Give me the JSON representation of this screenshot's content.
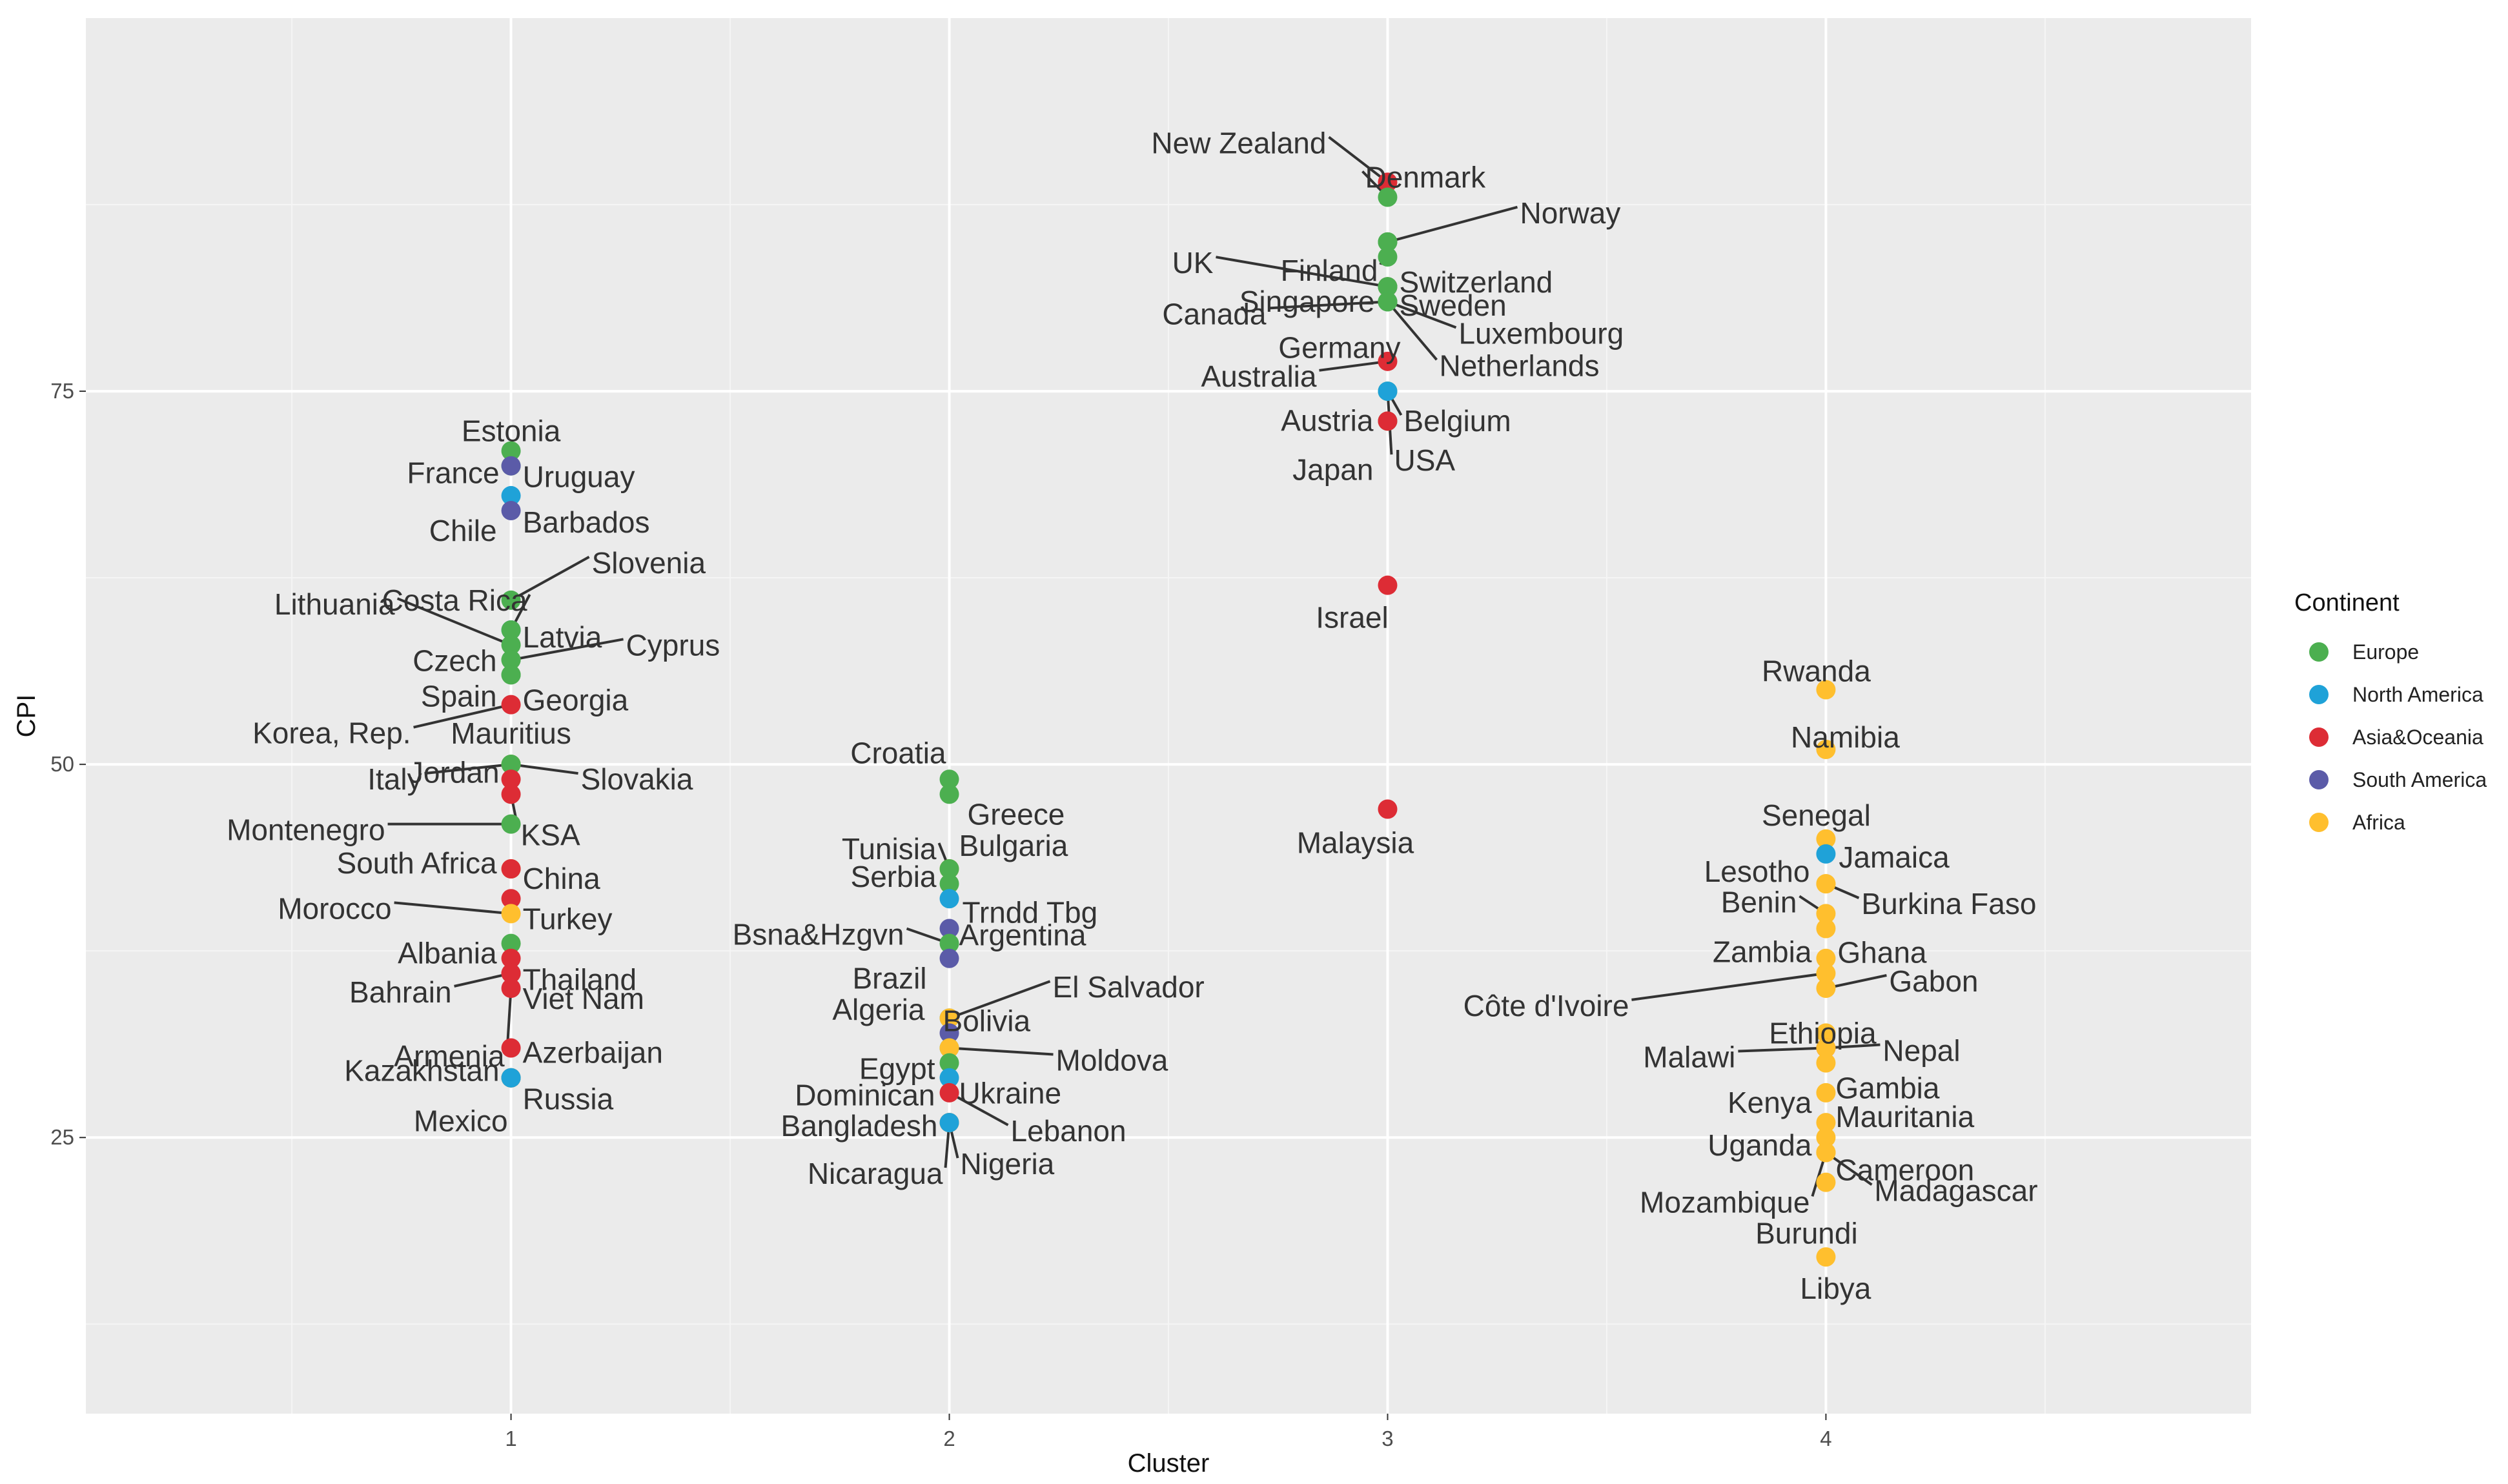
{
  "chart_data": {
    "type": "scatter",
    "title": "",
    "xlabel": "Cluster",
    "ylabel": "CPI",
    "xlim": [
      0.03,
      4.97
    ],
    "ylim": [
      6.5,
      100
    ],
    "x_ticks": [
      "1",
      "2",
      "3",
      "4"
    ],
    "y_ticks": [
      "25",
      "50",
      "75"
    ],
    "grid": true,
    "legend": {
      "title": "Continent",
      "position": "right",
      "entries": [
        "Europe",
        "North America",
        "Asia&Oceania",
        "South America",
        "Africa"
      ]
    },
    "colors": {
      "Europe": "#4CAF50",
      "North America": "#1FA2D8",
      "Asia&Oceania": "#DD2C35",
      "South America": "#5B5BA8",
      "Africa": "#FFBF2E"
    },
    "points": [
      {
        "label": "Estonia",
        "cluster": 1,
        "cpi": 71,
        "continent": "Europe"
      },
      {
        "label": "France",
        "cluster": 1,
        "cpi": 70,
        "continent": "Europe"
      },
      {
        "label": "Uruguay",
        "cluster": 1,
        "cpi": 70,
        "continent": "South America"
      },
      {
        "label": "Barbados",
        "cluster": 1,
        "cpi": 68,
        "continent": "North America"
      },
      {
        "label": "Chile",
        "cluster": 1,
        "cpi": 67,
        "continent": "South America"
      },
      {
        "label": "Slovenia",
        "cluster": 1,
        "cpi": 61,
        "continent": "Europe"
      },
      {
        "label": "Costa Rica",
        "cluster": 1,
        "cpi": 59,
        "continent": "North America"
      },
      {
        "label": "Latvia",
        "cluster": 1,
        "cpi": 59,
        "continent": "Europe"
      },
      {
        "label": "Lithuania",
        "cluster": 1,
        "cpi": 58,
        "continent": "Europe"
      },
      {
        "label": "Czech",
        "cluster": 1,
        "cpi": 57,
        "continent": "Europe"
      },
      {
        "label": "Cyprus",
        "cluster": 1,
        "cpi": 57,
        "continent": "Europe"
      },
      {
        "label": "Spain",
        "cluster": 1,
        "cpi": 56,
        "continent": "Europe"
      },
      {
        "label": "Georgia",
        "cluster": 1,
        "cpi": 56,
        "continent": "Europe"
      },
      {
        "label": "Korea, Rep.",
        "cluster": 1,
        "cpi": 54,
        "continent": "Asia&Oceania"
      },
      {
        "label": "Mauritius",
        "cluster": 1,
        "cpi": 50,
        "continent": "Africa"
      },
      {
        "label": "Italy",
        "cluster": 1,
        "cpi": 50,
        "continent": "Europe"
      },
      {
        "label": "Slovakia",
        "cluster": 1,
        "cpi": 50,
        "continent": "Europe"
      },
      {
        "label": "Jordan",
        "cluster": 1,
        "cpi": 49,
        "continent": "Asia&Oceania"
      },
      {
        "label": "KSA",
        "cluster": 1,
        "cpi": 48,
        "continent": "Asia&Oceania"
      },
      {
        "label": "Montenegro",
        "cluster": 1,
        "cpi": 46,
        "continent": "Europe"
      },
      {
        "label": "South Africa",
        "cluster": 1,
        "cpi": 43,
        "continent": "Africa"
      },
      {
        "label": "China",
        "cluster": 1,
        "cpi": 43,
        "continent": "Asia&Oceania"
      },
      {
        "label": "Turkey",
        "cluster": 1,
        "cpi": 41,
        "continent": "Asia&Oceania"
      },
      {
        "label": "Morocco",
        "cluster": 1,
        "cpi": 40,
        "continent": "Africa"
      },
      {
        "label": "Albania",
        "cluster": 1,
        "cpi": 38,
        "continent": "Europe"
      },
      {
        "label": "Thailand",
        "cluster": 1,
        "cpi": 37,
        "continent": "Asia&Oceania"
      },
      {
        "label": "Bahrain",
        "cluster": 1,
        "cpi": 36,
        "continent": "Asia&Oceania"
      },
      {
        "label": "Viet Nam",
        "cluster": 1,
        "cpi": 36,
        "continent": "Asia&Oceania"
      },
      {
        "label": "Armenia",
        "cluster": 1,
        "cpi": 35,
        "continent": "Asia&Oceania"
      },
      {
        "label": "Azerbaijan",
        "cluster": 1,
        "cpi": 31,
        "continent": "Asia&Oceania"
      },
      {
        "label": "Kazakhstan",
        "cluster": 1,
        "cpi": 29,
        "continent": "Asia&Oceania"
      },
      {
        "label": "Russia",
        "cluster": 1,
        "cpi": 29,
        "continent": "Europe"
      },
      {
        "label": "Mexico",
        "cluster": 1,
        "cpi": 29,
        "continent": "North America"
      },
      {
        "label": "Croatia",
        "cluster": 2,
        "cpi": 49,
        "continent": "Europe"
      },
      {
        "label": "Greece",
        "cluster": 2,
        "cpi": 48,
        "continent": "Europe"
      },
      {
        "label": "Tunisia",
        "cluster": 2,
        "cpi": 43,
        "continent": "Africa"
      },
      {
        "label": "Bulgaria",
        "cluster": 2,
        "cpi": 43,
        "continent": "Europe"
      },
      {
        "label": "Serbia",
        "cluster": 2,
        "cpi": 42,
        "continent": "Europe"
      },
      {
        "label": "Trndd Tbg",
        "cluster": 2,
        "cpi": 41,
        "continent": "North America"
      },
      {
        "label": "Argentina",
        "cluster": 2,
        "cpi": 39,
        "continent": "South America"
      },
      {
        "label": "Bsna&Hzgvn",
        "cluster": 2,
        "cpi": 38,
        "continent": "Europe"
      },
      {
        "label": "Brazil",
        "cluster": 2,
        "cpi": 37,
        "continent": "South America"
      },
      {
        "label": "El Salvador",
        "cluster": 2,
        "cpi": 33,
        "continent": "North America"
      },
      {
        "label": "Algeria",
        "cluster": 2,
        "cpi": 33,
        "continent": "Africa"
      },
      {
        "label": "Bolivia",
        "cluster": 2,
        "cpi": 32,
        "continent": "South America"
      },
      {
        "label": "Moldova",
        "cluster": 2,
        "cpi": 31,
        "continent": "Europe"
      },
      {
        "label": "Egypt",
        "cluster": 2,
        "cpi": 31,
        "continent": "Africa"
      },
      {
        "label": "Ukraine",
        "cluster": 2,
        "cpi": 30,
        "continent": "Europe"
      },
      {
        "label": "Dominican",
        "cluster": 2,
        "cpi": 29,
        "continent": "North America"
      },
      {
        "label": "Lebanon",
        "cluster": 2,
        "cpi": 28,
        "continent": "Asia&Oceania"
      },
      {
        "label": "Bangladesh",
        "cluster": 2,
        "cpi": 26,
        "continent": "Asia&Oceania"
      },
      {
        "label": "Nigeria",
        "cluster": 2,
        "cpi": 26,
        "continent": "Africa"
      },
      {
        "label": "Nicaragua",
        "cluster": 2,
        "cpi": 26,
        "continent": "North America"
      },
      {
        "label": "New Zealand",
        "cluster": 3,
        "cpi": 89,
        "continent": "Asia&Oceania"
      },
      {
        "label": "Denmark",
        "cluster": 3,
        "cpi": 88,
        "continent": "Europe"
      },
      {
        "label": "Norway",
        "cluster": 3,
        "cpi": 85,
        "continent": "Europe"
      },
      {
        "label": "Finland",
        "cluster": 3,
        "cpi": 85,
        "continent": "Europe"
      },
      {
        "label": "Switzerland",
        "cluster": 3,
        "cpi": 84,
        "continent": "Europe"
      },
      {
        "label": "Singapore",
        "cluster": 3,
        "cpi": 82,
        "continent": "Asia&Oceania"
      },
      {
        "label": "UK",
        "cluster": 3,
        "cpi": 82,
        "continent": "Europe"
      },
      {
        "label": "Sweden",
        "cluster": 3,
        "cpi": 82,
        "continent": "Europe"
      },
      {
        "label": "Canada",
        "cluster": 3,
        "cpi": 81,
        "continent": "North America"
      },
      {
        "label": "Luxembourg",
        "cluster": 3,
        "cpi": 81,
        "continent": "Europe"
      },
      {
        "label": "Netherlands",
        "cluster": 3,
        "cpi": 81,
        "continent": "Europe"
      },
      {
        "label": "Germany",
        "cluster": 3,
        "cpi": 81,
        "continent": "Europe"
      },
      {
        "label": "Australia",
        "cluster": 3,
        "cpi": 77,
        "continent": "Asia&Oceania"
      },
      {
        "label": "Belgium",
        "cluster": 3,
        "cpi": 75,
        "continent": "Europe"
      },
      {
        "label": "USA",
        "cluster": 3,
        "cpi": 75,
        "continent": "North America"
      },
      {
        "label": "Austria",
        "cluster": 3,
        "cpi": 73,
        "continent": "Europe"
      },
      {
        "label": "Japan",
        "cluster": 3,
        "cpi": 73,
        "continent": "Asia&Oceania"
      },
      {
        "label": "Israel",
        "cluster": 3,
        "cpi": 62,
        "continent": "Asia&Oceania"
      },
      {
        "label": "Malaysia",
        "cluster": 3,
        "cpi": 47,
        "continent": "Asia&Oceania"
      },
      {
        "label": "Rwanda",
        "cluster": 4,
        "cpi": 55,
        "continent": "Africa"
      },
      {
        "label": "Namibia",
        "cluster": 4,
        "cpi": 51,
        "continent": "Africa"
      },
      {
        "label": "Senegal",
        "cluster": 4,
        "cpi": 45,
        "continent": "Africa"
      },
      {
        "label": "Jamaica",
        "cluster": 4,
        "cpi": 44,
        "continent": "North America"
      },
      {
        "label": "Lesotho",
        "cluster": 4,
        "cpi": 42,
        "continent": "Africa"
      },
      {
        "label": "Burkina Faso",
        "cluster": 4,
        "cpi": 42,
        "continent": "Africa"
      },
      {
        "label": "Benin",
        "cluster": 4,
        "cpi": 40,
        "continent": "Africa"
      },
      {
        "label": "Ghana",
        "cluster": 4,
        "cpi": 39,
        "continent": "Africa"
      },
      {
        "label": "Zambia",
        "cluster": 4,
        "cpi": 37,
        "continent": "Africa"
      },
      {
        "label": "Côte d'Ivoire",
        "cluster": 4,
        "cpi": 36,
        "continent": "Africa"
      },
      {
        "label": "Gabon",
        "cluster": 4,
        "cpi": 35,
        "continent": "Africa"
      },
      {
        "label": "Ethiopia",
        "cluster": 4,
        "cpi": 32,
        "continent": "Africa"
      },
      {
        "label": "Nepal",
        "cluster": 4,
        "cpi": 31,
        "continent": "Asia&Oceania"
      },
      {
        "label": "Malawi",
        "cluster": 4,
        "cpi": 31,
        "continent": "Africa"
      },
      {
        "label": "Gambia",
        "cluster": 4,
        "cpi": 30,
        "continent": "Africa"
      },
      {
        "label": "Kenya",
        "cluster": 4,
        "cpi": 28,
        "continent": "Africa"
      },
      {
        "label": "Mauritania",
        "cluster": 4,
        "cpi": 26,
        "continent": "Africa"
      },
      {
        "label": "Uganda",
        "cluster": 4,
        "cpi": 25,
        "continent": "Africa"
      },
      {
        "label": "Cameroon",
        "cluster": 4,
        "cpi": 24,
        "continent": "Africa"
      },
      {
        "label": "Mozambique",
        "cluster": 4,
        "cpi": 24,
        "continent": "Africa"
      },
      {
        "label": "Madagascar",
        "cluster": 4,
        "cpi": 24,
        "continent": "Africa"
      },
      {
        "label": "Burundi",
        "cluster": 4,
        "cpi": 22,
        "continent": "Africa"
      },
      {
        "label": "Libya",
        "cluster": 4,
        "cpi": 17,
        "continent": "Africa"
      }
    ]
  }
}
